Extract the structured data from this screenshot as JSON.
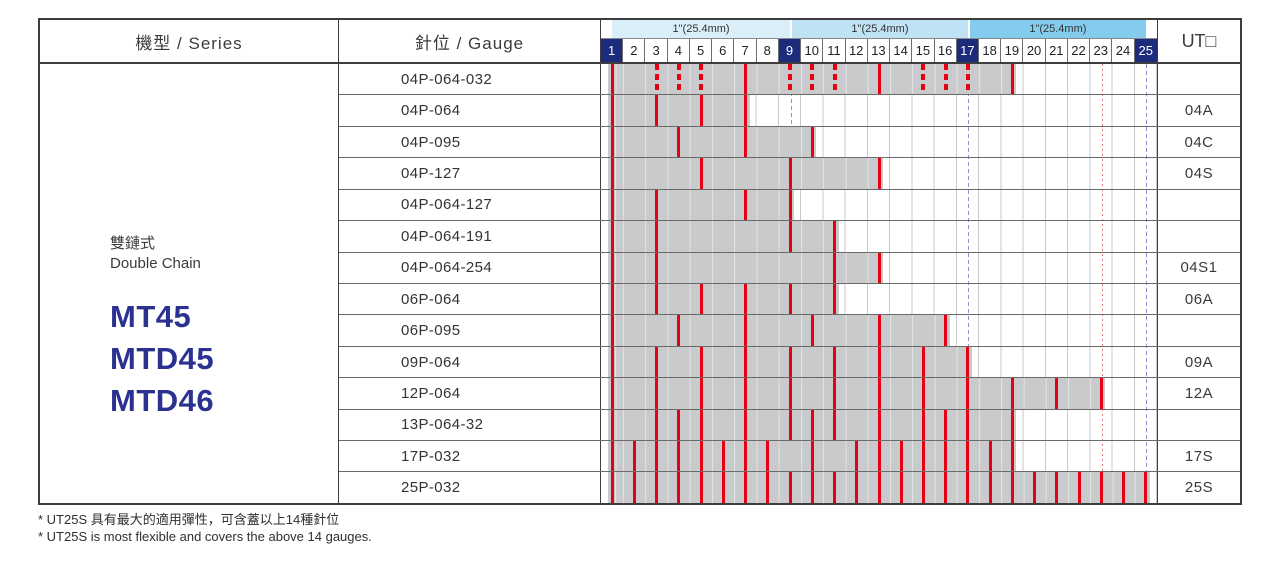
{
  "header": {
    "series_label": "機型 / Series",
    "gauge_label": "針位 / Gauge",
    "ut_label": "UT□",
    "inch_span_label": "1\"(25.4mm)",
    "columns": [
      1,
      2,
      3,
      4,
      5,
      6,
      7,
      8,
      9,
      10,
      11,
      12,
      13,
      14,
      15,
      16,
      17,
      18,
      19,
      20,
      21,
      22,
      23,
      24,
      25
    ],
    "highlight_columns": [
      1,
      9,
      17,
      25
    ]
  },
  "series": {
    "type_zh": "雙鏈式",
    "type_en": "Double Chain",
    "models": [
      "MT45",
      "MTD45",
      "MTD46"
    ]
  },
  "chart_data": {
    "type": "table",
    "title": "Needle position gauge chart (columns 1-25, 1\"=25.4mm per 8 columns)",
    "reference_lines": [
      {
        "column": 9,
        "style": "blue-dashed"
      },
      {
        "column": 17,
        "style": "blue-dashed"
      },
      {
        "column": 23,
        "style": "red-dotted"
      },
      {
        "column": 25,
        "style": "blue-dashed"
      }
    ],
    "rows": [
      {
        "gauge": "04P-064-032",
        "ut": "",
        "bar_span": [
          1,
          19
        ],
        "needles_solid": [
          1,
          7,
          13,
          19
        ],
        "needles_dashed": [
          3,
          4,
          5,
          9,
          10,
          11,
          15,
          16,
          17
        ]
      },
      {
        "gauge": "04P-064",
        "ut": "04A",
        "bar_span": [
          1,
          7
        ],
        "needles_solid": [
          1,
          3,
          5,
          7
        ],
        "needles_dashed": []
      },
      {
        "gauge": "04P-095",
        "ut": "04C",
        "bar_span": [
          1,
          10
        ],
        "needles_solid": [
          1,
          4,
          7,
          10
        ],
        "needles_dashed": []
      },
      {
        "gauge": "04P-127",
        "ut": "04S",
        "bar_span": [
          1,
          13
        ],
        "needles_solid": [
          1,
          5,
          9,
          13
        ],
        "needles_dashed": []
      },
      {
        "gauge": "04P-064-127",
        "ut": "",
        "bar_span": [
          1,
          9
        ],
        "needles_solid": [
          1,
          3,
          7,
          9
        ],
        "needles_dashed": []
      },
      {
        "gauge": "04P-064-191",
        "ut": "",
        "bar_span": [
          1,
          11
        ],
        "needles_solid": [
          1,
          3,
          9,
          11
        ],
        "needles_dashed": []
      },
      {
        "gauge": "04P-064-254",
        "ut": "04S1",
        "bar_span": [
          1,
          13
        ],
        "needles_solid": [
          1,
          3,
          11,
          13
        ],
        "needles_dashed": []
      },
      {
        "gauge": "06P-064",
        "ut": "06A",
        "bar_span": [
          1,
          11
        ],
        "needles_solid": [
          1,
          3,
          5,
          7,
          9,
          11
        ],
        "needles_dashed": []
      },
      {
        "gauge": "06P-095",
        "ut": "",
        "bar_span": [
          1,
          16
        ],
        "needles_solid": [
          1,
          4,
          7,
          10,
          13,
          16
        ],
        "needles_dashed": []
      },
      {
        "gauge": "09P-064",
        "ut": "09A",
        "bar_span": [
          1,
          17
        ],
        "needles_solid": [
          1,
          3,
          5,
          7,
          9,
          11,
          13,
          15,
          17
        ],
        "needles_dashed": []
      },
      {
        "gauge": "12P-064",
        "ut": "12A",
        "bar_span": [
          1,
          23
        ],
        "needles_solid": [
          1,
          3,
          5,
          7,
          9,
          11,
          13,
          15,
          17,
          19,
          21,
          23
        ],
        "needles_dashed": []
      },
      {
        "gauge": "13P-064-32",
        "ut": "",
        "bar_span": [
          1,
          19
        ],
        "needles_solid": [
          1,
          3,
          4,
          5,
          7,
          9,
          10,
          11,
          13,
          15,
          16,
          17,
          19
        ],
        "needles_dashed": []
      },
      {
        "gauge": "17P-032",
        "ut": "17S",
        "bar_span": [
          1,
          19
        ],
        "needles_solid": [
          1,
          2,
          3,
          4,
          5,
          6,
          7,
          8,
          10,
          12,
          13,
          14,
          15,
          16,
          17,
          18,
          19
        ],
        "needles_dashed": []
      },
      {
        "gauge": "25P-032",
        "ut": "25S",
        "bar_span": [
          1,
          25
        ],
        "needles_solid": [
          1,
          2,
          3,
          4,
          5,
          6,
          7,
          8,
          9,
          10,
          11,
          12,
          13,
          14,
          15,
          16,
          17,
          18,
          19,
          20,
          21,
          22,
          23,
          24,
          25
        ],
        "needles_dashed": []
      }
    ]
  },
  "footnotes": [
    "* UT25S 具有最大的適用彈性，可含蓋以上14種針位",
    "* UT25S is most flexible and covers the above 14 gauges."
  ],
  "colors": {
    "model_blue": "#2a3190",
    "header_navy": "#1d2b7c",
    "needle_red": "#e60012",
    "bar_gray": "#c9cacc",
    "band_light": "#daeef9",
    "band_mid": "#bfe3f5",
    "band_dark": "#84ccee",
    "ref_blue": "#8a94cf",
    "ref_red": "#e98080"
  }
}
